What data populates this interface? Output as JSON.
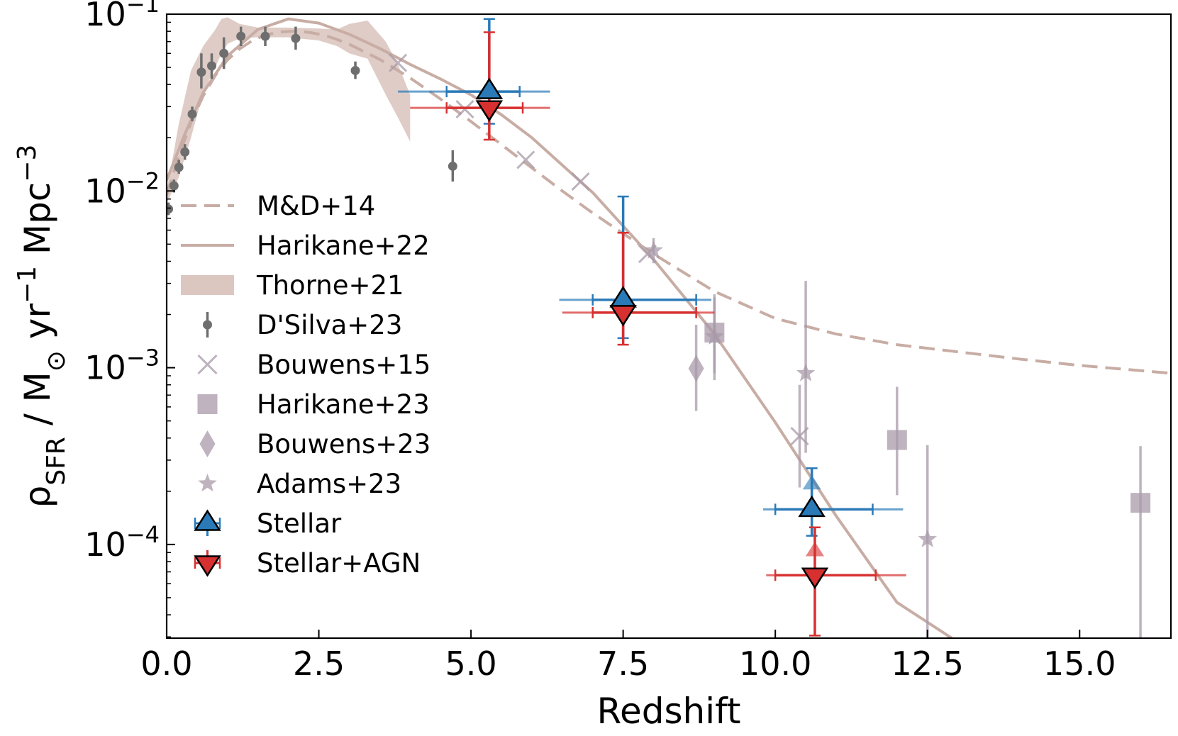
{
  "chart_data": {
    "type": "scatter",
    "xlabel": "Redshift",
    "ylabel": {
      "prefix": "ρ",
      "sub": "SFR",
      "mid": " / M",
      "sun": "⊙",
      "unit1": " yr",
      "sup1": "−1",
      "unit2": " Mpc",
      "sup2": "−3"
    },
    "xlim": [
      0,
      16.5
    ],
    "ylim_log10": [
      -4.53,
      -1.0
    ],
    "y_scale": "log",
    "x_ticks": [
      {
        "value": 0,
        "label": "0.0"
      },
      {
        "value": 2.5,
        "label": "2.5"
      },
      {
        "value": 5,
        "label": "5.0"
      },
      {
        "value": 7.5,
        "label": "7.5"
      },
      {
        "value": 10,
        "label": "10.0"
      },
      {
        "value": 12.5,
        "label": "12.5"
      },
      {
        "value": 15,
        "label": "15.0"
      }
    ],
    "y_ticks": [
      {
        "exp": -1,
        "base": "10",
        "sup": "−1"
      },
      {
        "exp": -2,
        "base": "10",
        "sup": "−2"
      },
      {
        "exp": -3,
        "base": "10",
        "sup": "−3"
      },
      {
        "exp": -4,
        "base": "10",
        "sup": "−4"
      }
    ],
    "colors": {
      "model": "#c8ada5",
      "band": "#dcc7c0",
      "dsilva": "#6e6e6e",
      "lit": "#a89aa9",
      "stellar": "#2a7ab8",
      "agn": "#d73030"
    },
    "legend": {
      "placement": "center-left",
      "entries": [
        {
          "label": "M&D+14",
          "marker": "dashed-line"
        },
        {
          "label": "Harikane+22",
          "marker": "solid-line"
        },
        {
          "label": "Thorne+21",
          "marker": "band"
        },
        {
          "label": "D'Silva+23",
          "marker": "dot-errorbar"
        },
        {
          "label": "Bouwens+15",
          "marker": "x"
        },
        {
          "label": "Harikane+23",
          "marker": "square"
        },
        {
          "label": "Bouwens+23",
          "marker": "diamond"
        },
        {
          "label": "Adams+23",
          "marker": "star"
        },
        {
          "label": "Stellar",
          "marker": "triangle-up"
        },
        {
          "label": "Stellar+AGN",
          "marker": "triangle-down"
        }
      ]
    },
    "md14": {
      "name": "M&D+14",
      "x": [
        0,
        0.2,
        0.4,
        0.6,
        0.8,
        1.0,
        1.2,
        1.4,
        1.6,
        1.8,
        2.0,
        2.2,
        2.4,
        2.6,
        2.8,
        3.0,
        3.5,
        4.0,
        4.5,
        5.0,
        5.5,
        6.0,
        6.5,
        7.0,
        8.0,
        9.0,
        10.0,
        11.0,
        12.0,
        13.0,
        14.0,
        15.0,
        16.5
      ],
      "y": [
        0.0095,
        0.0158,
        0.0244,
        0.0345,
        0.0451,
        0.0551,
        0.0637,
        0.0706,
        0.0757,
        0.0787,
        0.08,
        0.08,
        0.0783,
        0.0758,
        0.072,
        0.0676,
        0.0555,
        0.0436,
        0.0331,
        0.0247,
        0.0183,
        0.0135,
        0.01,
        0.0075,
        0.0044,
        0.0027,
        0.0019,
        0.00155,
        0.00135,
        0.00123,
        0.00112,
        0.00103,
        0.00093
      ]
    },
    "harikane22": {
      "name": "Harikane+22",
      "x": [
        0,
        0.3,
        0.6,
        1.0,
        1.5,
        2.0,
        2.5,
        3.0,
        3.5,
        4.0,
        4.5,
        5.0,
        5.5,
        6.0,
        7.0,
        8.0,
        9.0,
        10.0,
        11.0,
        12.0,
        12.9
      ],
      "y": [
        0.0115,
        0.021,
        0.036,
        0.058,
        0.082,
        0.094,
        0.089,
        0.077,
        0.064,
        0.052,
        0.043,
        0.035,
        0.027,
        0.02,
        0.0098,
        0.0041,
        0.00155,
        0.00049,
        0.000145,
        4.7e-05,
        2.95e-05
      ]
    },
    "thorne21": {
      "name": "Thorne+21",
      "x": [
        0,
        0.2,
        0.4,
        0.6,
        0.8,
        0.9,
        1.0,
        1.2,
        1.5,
        2.0,
        2.5,
        2.8,
        3.0,
        3.3,
        3.6,
        3.8,
        4.0
      ],
      "upper": [
        0.01,
        0.024,
        0.048,
        0.066,
        0.082,
        0.094,
        0.096,
        0.088,
        0.084,
        0.084,
        0.083,
        0.082,
        0.088,
        0.092,
        0.07,
        0.052,
        0.035
      ],
      "lower": [
        0.0085,
        0.012,
        0.02,
        0.036,
        0.05,
        0.06,
        0.068,
        0.073,
        0.074,
        0.074,
        0.071,
        0.066,
        0.06,
        0.056,
        0.035,
        0.026,
        0.019
      ]
    },
    "dsilva23": {
      "name": "D'Silva+23",
      "points": [
        {
          "x": 0.03,
          "y": 0.0079,
          "lo": 0.0073,
          "hi": 0.0086
        },
        {
          "x": 0.12,
          "y": 0.0107,
          "lo": 0.0098,
          "hi": 0.0116
        },
        {
          "x": 0.2,
          "y": 0.0136,
          "lo": 0.0125,
          "hi": 0.015
        },
        {
          "x": 0.3,
          "y": 0.0166,
          "lo": 0.015,
          "hi": 0.0184
        },
        {
          "x": 0.42,
          "y": 0.0272,
          "lo": 0.0248,
          "hi": 0.03
        },
        {
          "x": 0.57,
          "y": 0.047,
          "lo": 0.038,
          "hi": 0.06
        },
        {
          "x": 0.74,
          "y": 0.051,
          "lo": 0.043,
          "hi": 0.06
        },
        {
          "x": 0.94,
          "y": 0.06,
          "lo": 0.049,
          "hi": 0.074
        },
        {
          "x": 1.22,
          "y": 0.075,
          "lo": 0.066,
          "hi": 0.085
        },
        {
          "x": 1.62,
          "y": 0.075,
          "lo": 0.066,
          "hi": 0.085
        },
        {
          "x": 2.12,
          "y": 0.073,
          "lo": 0.063,
          "hi": 0.085
        },
        {
          "x": 3.1,
          "y": 0.048,
          "lo": 0.043,
          "hi": 0.054
        },
        {
          "x": 4.7,
          "y": 0.0138,
          "lo": 0.0113,
          "hi": 0.017
        }
      ]
    },
    "bouwens15": {
      "name": "Bouwens+15",
      "points": [
        {
          "x": 3.8,
          "y": 0.053
        },
        {
          "x": 4.9,
          "y": 0.029
        },
        {
          "x": 5.9,
          "y": 0.015
        },
        {
          "x": 6.8,
          "y": 0.0113
        },
        {
          "x": 7.9,
          "y": 0.0044
        },
        {
          "x": 10.4,
          "y": 0.00041,
          "lo": 0.00021,
          "hi": 0.0008
        }
      ]
    },
    "harikane23": {
      "name": "Harikane+23",
      "points": [
        {
          "x": 9.0,
          "y": 0.00158,
          "lo": 0.00093,
          "hi": 0.0026
        },
        {
          "x": 12.0,
          "y": 0.00039,
          "lo": 0.00019,
          "hi": 0.00078
        },
        {
          "x": 16.0,
          "y": 0.000172,
          "lo": 2.95e-05,
          "hi": 0.00036
        }
      ]
    },
    "bouwens23": {
      "name": "Bouwens+23",
      "points": [
        {
          "x": 8.7,
          "y": 0.00099,
          "lo": 0.00057,
          "hi": 0.00175
        }
      ]
    },
    "adams23": {
      "name": "Adams+23",
      "points": [
        {
          "x": 8.0,
          "y": 0.0046,
          "lo": 0.0039,
          "hi": 0.0054
        },
        {
          "x": 9.0,
          "y": 0.0015,
          "lo": 0.00085,
          "hi": 0.0025
        },
        {
          "x": 10.5,
          "y": 0.00093,
          "lo": 0.00033,
          "hi": 0.0031
        },
        {
          "x": 12.5,
          "y": 0.000107,
          "lo": 2.95e-05,
          "hi": 0.000365
        }
      ]
    },
    "stellar": {
      "name": "Stellar",
      "points": [
        {
          "x": 5.3,
          "y": 0.0365,
          "xlo": 3.8,
          "xhi": 6.3,
          "xlo_inner": 4.6,
          "xhi_inner": 5.8,
          "ylo": 0.024,
          "yhi": 0.094,
          "ylo_inner": 0.027,
          "yhi_inner": 0.082
        },
        {
          "x": 7.5,
          "y": 0.00242,
          "xlo": 6.45,
          "xhi": 8.95,
          "xlo_inner": 7.0,
          "xhi_inner": 8.7,
          "ylo": 0.00147,
          "yhi": 0.0093,
          "ylo_inner": 0.0016,
          "yhi_inner": 0.0058
        },
        {
          "x": 10.6,
          "y": 0.000158,
          "xlo": 9.8,
          "xhi": 12.1,
          "xlo_inner": 10.0,
          "xhi_inner": 11.6,
          "ylo": 0.000112,
          "yhi": 0.00027,
          "ylo_inner": 0.000118,
          "yhi_inner": 0.00024
        }
      ],
      "upper_arrow": {
        "x": 10.6,
        "y": 0.000222
      }
    },
    "stellar_agn": {
      "name": "Stellar+AGN",
      "points": [
        {
          "x": 5.3,
          "y": 0.0295,
          "xlo": 4.0,
          "xhi": 6.3,
          "xlo_inner": 4.6,
          "xhi_inner": 5.85,
          "ylo": 0.0195,
          "yhi": 0.079,
          "ylo_inner": 0.022,
          "yhi_inner": 0.075
        },
        {
          "x": 7.5,
          "y": 0.00205,
          "xlo": 6.5,
          "xhi": 9.0,
          "xlo_inner": 7.0,
          "xhi_inner": 8.7,
          "ylo": 0.00135,
          "yhi": 0.0058,
          "ylo_inner": 0.0015,
          "yhi_inner": 0.0052
        },
        {
          "x": 10.65,
          "y": 6.7e-05,
          "xlo": 9.85,
          "xhi": 12.15,
          "xlo_inner": 10.0,
          "xhi_inner": 11.65,
          "ylo": 3.05e-05,
          "yhi": 0.000125,
          "ylo_inner": 3.35e-05,
          "yhi_inner": 0.00011
        }
      ],
      "upper_arrow": {
        "x": 10.65,
        "y": 9.3e-05
      }
    }
  }
}
